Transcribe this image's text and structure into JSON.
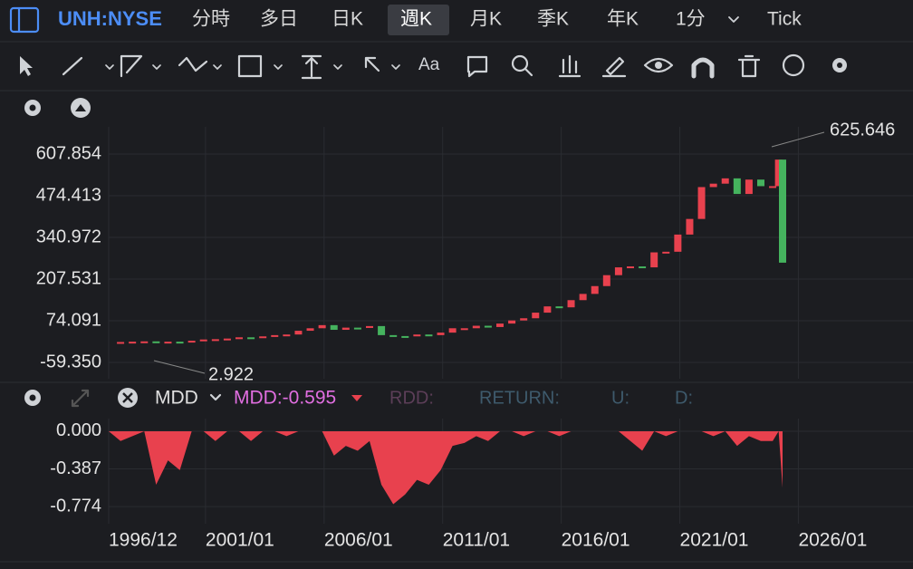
{
  "toolbar": {
    "symbol": "UNH:NYSE",
    "periods": [
      "分時",
      "多日",
      "日K",
      "週K",
      "月K",
      "季K",
      "年K",
      "1分",
      "Tick"
    ],
    "active_period": "週K"
  },
  "tools": {
    "text_tool": "Aa"
  },
  "indicator": {
    "name": "MDD",
    "value_label": "MDD:-0.595",
    "fields": [
      "RDD:",
      "RETURN:",
      "U:",
      "D:"
    ]
  },
  "chart_data": [
    {
      "type": "candlestick",
      "up_color": "#e8414e",
      "down_color": "#45b35e",
      "grid": true,
      "high_label": "625.646",
      "low_label": "2.922",
      "x": [
        "1996/12",
        "1997/06",
        "1997/12",
        "1998/06",
        "1998/12",
        "1999/06",
        "1999/12",
        "2000/06",
        "2000/12",
        "2001/06",
        "2001/12",
        "2002/06",
        "2002/12",
        "2003/06",
        "2003/12",
        "2004/06",
        "2004/12",
        "2005/06",
        "2005/12",
        "2006/06",
        "2006/12",
        "2007/06",
        "2007/12",
        "2008/06",
        "2008/12",
        "2009/06",
        "2009/12",
        "2010/06",
        "2010/12",
        "2011/06",
        "2011/12",
        "2012/06",
        "2012/12",
        "2013/06",
        "2013/12",
        "2014/06",
        "2014/12",
        "2015/06",
        "2015/12",
        "2016/06",
        "2016/12",
        "2017/06",
        "2017/12",
        "2018/06",
        "2018/12",
        "2019/06",
        "2019/12",
        "2020/06",
        "2020/12",
        "2021/06",
        "2021/12",
        "2022/06",
        "2022/12",
        "2023/06",
        "2023/12",
        "2024/06",
        "2024/12",
        "2025/03",
        "2025/05"
      ],
      "values": [
        6,
        6,
        7,
        8,
        5,
        7,
        6,
        10,
        14,
        15,
        17,
        21,
        20,
        24,
        28,
        30,
        42,
        50,
        60,
        45,
        52,
        51,
        57,
        28,
        25,
        24,
        30,
        28,
        36,
        50,
        50,
        58,
        54,
        65,
        75,
        82,
        100,
        120,
        117,
        140,
        160,
        185,
        220,
        245,
        248,
        245,
        293,
        295,
        350,
        400,
        502,
        513,
        530,
        480,
        526,
        505,
        505,
        590,
        260
      ],
      "xlim": [
        "1996/12",
        "2030/11"
      ],
      "xticks": [
        "1996/12",
        "2001/01",
        "2006/01",
        "2011/01",
        "2016/01",
        "2021/01",
        "2026/01"
      ],
      "ylim": [
        -111.6,
        694.9
      ],
      "yticks": [
        607.854,
        474.413,
        340.972,
        207.531,
        74.091,
        {
          "value": -59.35,
          "label": "-59.350"
        }
      ]
    },
    {
      "type": "area",
      "color": "#e8414e",
      "grid": true,
      "x": [
        "1996/12",
        "1997/06",
        "1997/12",
        "1998/06",
        "1998/12",
        "1999/06",
        "1999/12",
        "2000/06",
        "2000/12",
        "2001/06",
        "2001/12",
        "2002/06",
        "2002/12",
        "2003/06",
        "2003/12",
        "2004/06",
        "2004/12",
        "2005/06",
        "2005/12",
        "2006/06",
        "2006/12",
        "2007/06",
        "2007/12",
        "2008/06",
        "2008/12",
        "2009/06",
        "2009/12",
        "2010/06",
        "2010/12",
        "2011/06",
        "2011/12",
        "2012/06",
        "2012/12",
        "2013/06",
        "2013/12",
        "2014/06",
        "2014/12",
        "2015/06",
        "2015/12",
        "2016/06",
        "2016/12",
        "2017/06",
        "2017/12",
        "2018/06",
        "2018/12",
        "2019/06",
        "2019/12",
        "2020/06",
        "2020/12",
        "2021/06",
        "2021/12",
        "2022/06",
        "2022/12",
        "2023/06",
        "2023/12",
        "2024/06",
        "2024/12",
        "2025/03",
        "2025/05"
      ],
      "values": [
        0,
        -0.1,
        -0.05,
        0,
        -0.55,
        -0.3,
        -0.4,
        0,
        0,
        -0.1,
        0,
        0,
        -0.1,
        0,
        0,
        -0.05,
        0,
        0,
        0,
        -0.25,
        -0.15,
        -0.2,
        -0.1,
        -0.55,
        -0.75,
        -0.65,
        -0.5,
        -0.55,
        -0.4,
        -0.15,
        -0.12,
        -0.05,
        -0.1,
        0,
        0,
        -0.05,
        0,
        0,
        -0.05,
        0,
        0,
        0,
        0,
        0,
        -0.1,
        -0.2,
        0,
        -0.05,
        0,
        0,
        0,
        -0.05,
        0,
        -0.15,
        -0.05,
        -0.1,
        -0.1,
        0,
        -0.58
      ],
      "ylim": [
        -0.95,
        0.13
      ],
      "yticks": [
        {
          "value": 0,
          "label": "0.000"
        },
        {
          "value": -0.387,
          "label": "-0.387"
        },
        {
          "value": -0.774,
          "label": "-0.774"
        }
      ]
    }
  ]
}
